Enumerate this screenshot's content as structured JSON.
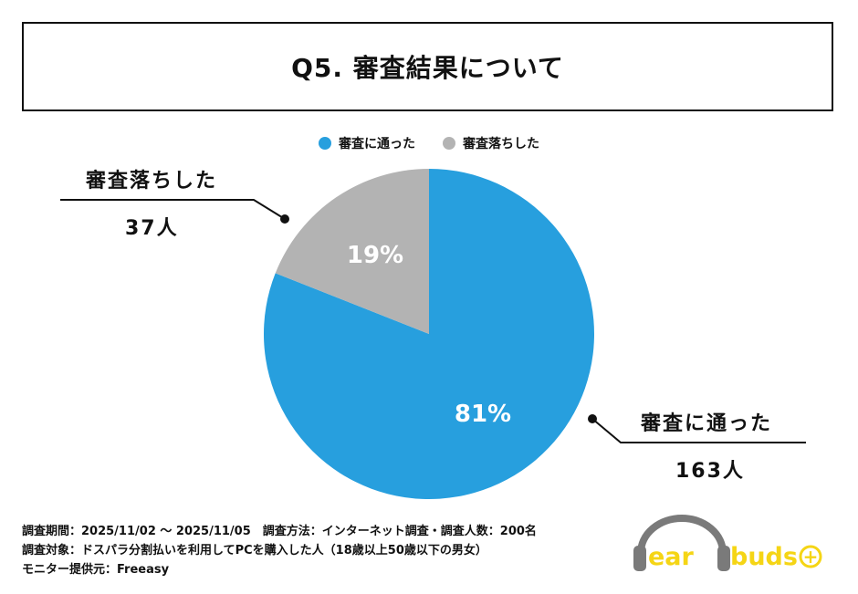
{
  "title": "Q5. 審査結果について",
  "colors": {
    "passed": "#279fde",
    "failed": "#b3b3b3",
    "logo_text": "#f5d515",
    "logo_headphone": "#7a7a7a"
  },
  "chart_data": {
    "type": "pie",
    "series": [
      {
        "name": "審査に通った",
        "value": 81,
        "count": 163,
        "label": "81%",
        "count_label": "163人"
      },
      {
        "name": "審査落ちした",
        "value": 19,
        "count": 37,
        "label": "19%",
        "count_label": "37人"
      }
    ]
  },
  "legend": [
    "審査に通った",
    "審査落ちした"
  ],
  "footer": {
    "line1": "調査期間：2025/11/02 ～ 2025/11/05　調査方法：インターネット調査・調査人数：200名",
    "line2": "調査対象：ドスパラ分割払いを利用してPCを購入した人（18歳以上50歳以下の男女）",
    "line3": "モニター提供元：Freeasy"
  },
  "logo": {
    "text_left": "ear",
    "text_right": "buds",
    "plus": "+"
  }
}
